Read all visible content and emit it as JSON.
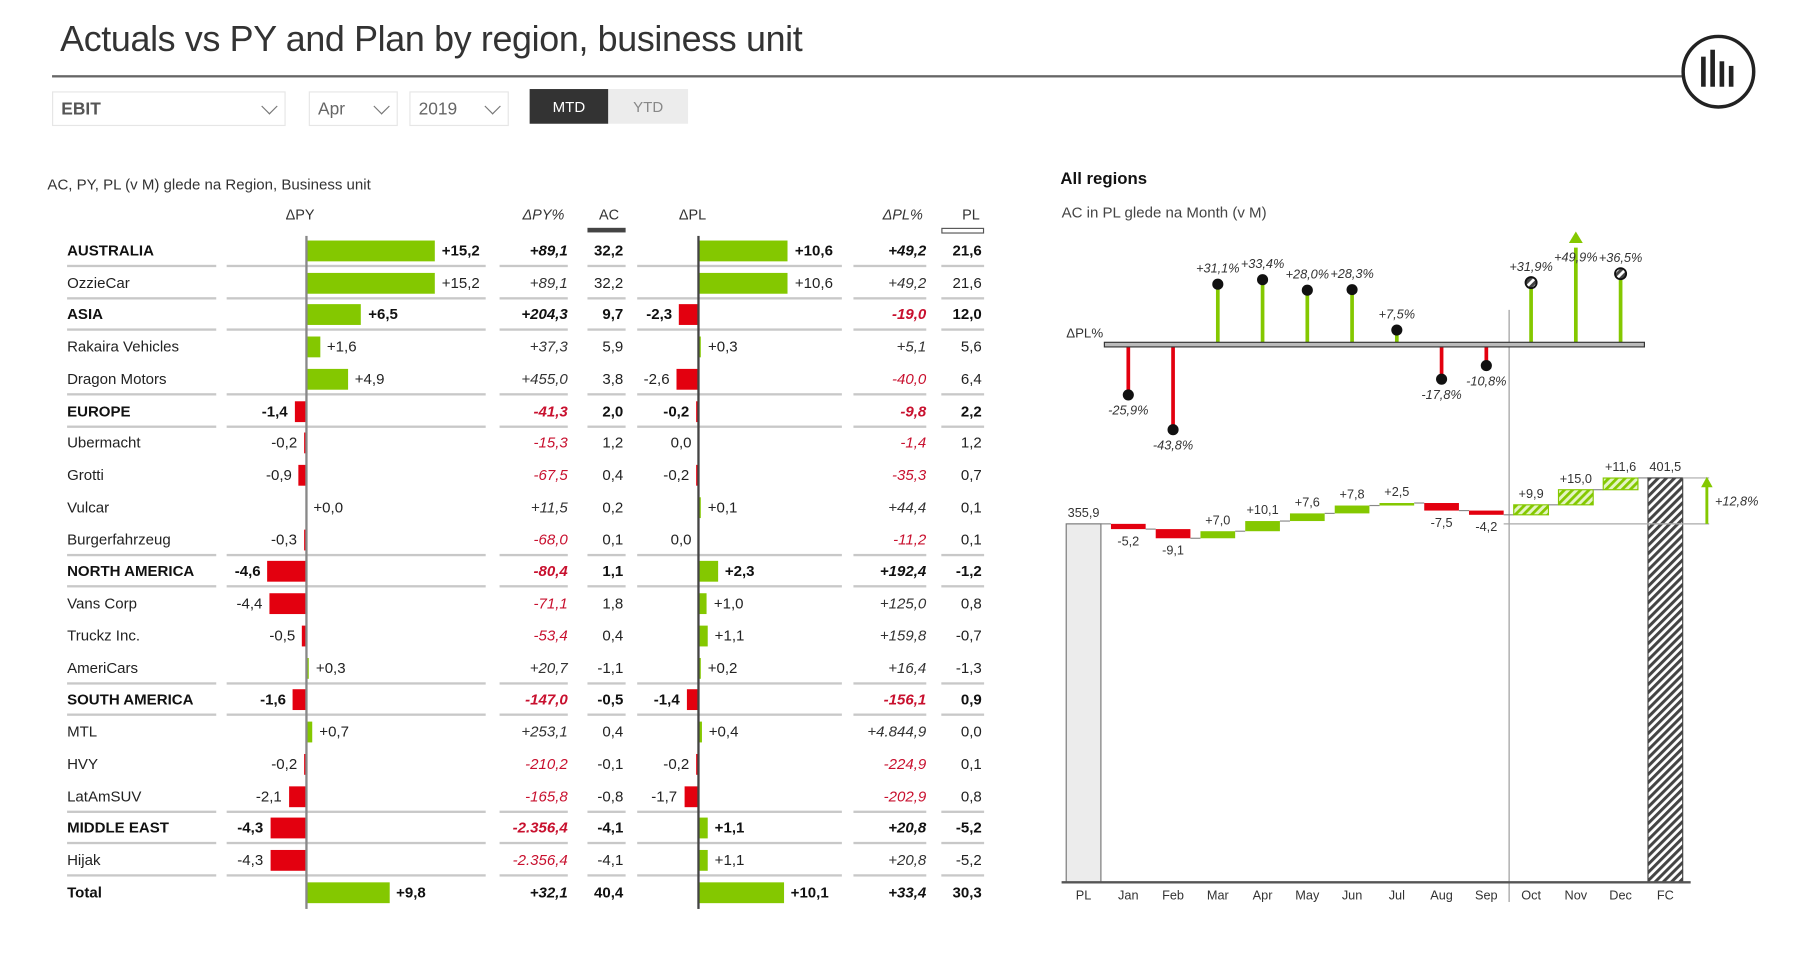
{
  "title": "Actuals vs PY and Plan by region, business unit",
  "filters": {
    "measure": "EBIT",
    "month": "Apr",
    "year": "2019",
    "toggle": [
      {
        "label": "MTD",
        "active": true
      },
      {
        "label": "YTD",
        "active": false
      }
    ]
  },
  "colors": {
    "positive": "#84c800",
    "negative": "#e3000f",
    "negative_text": "#c8102e",
    "active_toggle": "#333333",
    "inactive_toggle": "#ececec"
  },
  "logo": "zebra-bi-logo",
  "table": {
    "subtitle": "AC, PY, PL (v M) glede na Region, Business unit",
    "headers": {
      "dpy": "ΔPY",
      "dpy_pct": "ΔPY%",
      "ac": "AC",
      "dpl": "ΔPL",
      "dpl_pct": "ΔPL%",
      "pl": "PL"
    },
    "rows": [
      {
        "name": "AUSTRALIA",
        "level": "region",
        "dpy": "+15,2",
        "dpy_pct": "+89,1",
        "ac": "32,2",
        "dpl": "+10,6",
        "dpl_pct": "+49,2",
        "pl": "21,6"
      },
      {
        "name": "OzzieCar",
        "level": "unit",
        "sep": true,
        "dpy": "+15,2",
        "dpy_pct": "+89,1",
        "ac": "32,2",
        "dpl": "+10,6",
        "dpl_pct": "+49,2",
        "pl": "21,6"
      },
      {
        "name": "ASIA",
        "level": "region",
        "dpy": "+6,5",
        "dpy_pct": "+204,3",
        "ac": "9,7",
        "dpl": "-2,3",
        "dpl_pct": "-19,0",
        "pl": "12,0"
      },
      {
        "name": "Rakaira Vehicles",
        "level": "unit",
        "dpy": "+1,6",
        "dpy_pct": "+37,3",
        "ac": "5,9",
        "dpl": "+0,3",
        "dpl_pct": "+5,1",
        "pl": "5,6"
      },
      {
        "name": "Dragon Motors",
        "level": "unit",
        "sep": true,
        "dpy": "+4,9",
        "dpy_pct": "+455,0",
        "ac": "3,8",
        "dpl": "-2,6",
        "dpl_pct": "-40,0",
        "pl": "6,4"
      },
      {
        "name": "EUROPE",
        "level": "region",
        "dpy": "-1,4",
        "dpy_pct": "-41,3",
        "ac": "2,0",
        "dpl": "-0,2",
        "dpl_pct": "-9,8",
        "pl": "2,2"
      },
      {
        "name": "Ubermacht",
        "level": "unit",
        "dpy": "-0,2",
        "dpy_pct": "-15,3",
        "ac": "1,2",
        "dpl": "0,0",
        "dpl_pct": "-1,4",
        "pl": "1,2"
      },
      {
        "name": "Grotti",
        "level": "unit",
        "dpy": "-0,9",
        "dpy_pct": "-67,5",
        "ac": "0,4",
        "dpl": "-0,2",
        "dpl_pct": "-35,3",
        "pl": "0,7"
      },
      {
        "name": "Vulcar",
        "level": "unit",
        "dpy": "+0,0",
        "dpy_pct": "+11,5",
        "ac": "0,2",
        "dpl": "+0,1",
        "dpl_pct": "+44,4",
        "pl": "0,1"
      },
      {
        "name": "Burgerfahrzeug",
        "level": "unit",
        "sep": true,
        "dpy": "-0,3",
        "dpy_pct": "-68,0",
        "ac": "0,1",
        "dpl": "0,0",
        "dpl_pct": "-11,2",
        "pl": "0,1"
      },
      {
        "name": "NORTH AMERICA",
        "level": "region",
        "dpy": "-4,6",
        "dpy_pct": "-80,4",
        "ac": "1,1",
        "dpl": "+2,3",
        "dpl_pct": "+192,4",
        "pl": "-1,2"
      },
      {
        "name": "Vans Corp",
        "level": "unit",
        "dpy": "-4,4",
        "dpy_pct": "-71,1",
        "ac": "1,8",
        "dpl": "+1,0",
        "dpl_pct": "+125,0",
        "pl": "0,8"
      },
      {
        "name": "Truckz Inc.",
        "level": "unit",
        "dpy": "-0,5",
        "dpy_pct": "-53,4",
        "ac": "0,4",
        "dpl": "+1,1",
        "dpl_pct": "+159,8",
        "pl": "-0,7"
      },
      {
        "name": "AmeriCars",
        "level": "unit",
        "sep": true,
        "dpy": "+0,3",
        "dpy_pct": "+20,7",
        "ac": "-1,1",
        "dpl": "+0,2",
        "dpl_pct": "+16,4",
        "pl": "-1,3"
      },
      {
        "name": "SOUTH AMERICA",
        "level": "region",
        "dpy": "-1,6",
        "dpy_pct": "-147,0",
        "ac": "-0,5",
        "dpl": "-1,4",
        "dpl_pct": "-156,1",
        "pl": "0,9"
      },
      {
        "name": "MTL",
        "level": "unit",
        "dpy": "+0,7",
        "dpy_pct": "+253,1",
        "ac": "0,4",
        "dpl": "+0,4",
        "dpl_pct": "+4.844,9",
        "pl": "0,0"
      },
      {
        "name": "HVY",
        "level": "unit",
        "dpy": "-0,2",
        "dpy_pct": "-210,2",
        "ac": "-0,1",
        "dpl": "-0,2",
        "dpl_pct": "-224,9",
        "pl": "0,1"
      },
      {
        "name": "LatAmSUV",
        "level": "unit",
        "sep": true,
        "dpy": "-2,1",
        "dpy_pct": "-165,8",
        "ac": "-0,8",
        "dpl": "-1,7",
        "dpl_pct": "-202,9",
        "pl": "0,8"
      },
      {
        "name": "MIDDLE EAST",
        "level": "region",
        "dpy": "-4,3",
        "dpy_pct": "-2.356,4",
        "ac": "-4,1",
        "dpl": "+1,1",
        "dpl_pct": "+20,8",
        "pl": "-5,2"
      },
      {
        "name": "Hijak",
        "level": "unit",
        "sep": true,
        "dpy": "-4,3",
        "dpy_pct": "-2.356,4",
        "ac": "-4,1",
        "dpl": "+1,1",
        "dpl_pct": "+20,8",
        "pl": "-5,2"
      },
      {
        "name": "Total",
        "level": "total",
        "dpy": "+9,8",
        "dpy_pct": "+32,1",
        "ac": "40,4",
        "dpl": "+10,1",
        "dpl_pct": "+33,4",
        "pl": "30,3"
      }
    ]
  },
  "right_panel": {
    "title": "All regions",
    "subtitle": "AC in PL glede na Month (v M)"
  },
  "chart_data": [
    {
      "type": "lollipop",
      "ylabel": "ΔPL%",
      "categories": [
        "Jan",
        "Feb",
        "Mar",
        "Apr",
        "May",
        "Jun",
        "Jul",
        "Aug",
        "Sep",
        "Oct",
        "Nov",
        "Dec"
      ],
      "values": [
        -25.9,
        -43.8,
        31.1,
        33.4,
        28.0,
        28.3,
        7.5,
        -17.8,
        -10.8,
        31.9,
        49.9,
        36.5
      ],
      "labels": [
        "-25,9%",
        "-43,8%",
        "+31,1%",
        "+33,4%",
        "+28,0%",
        "+28,3%",
        "+7,5%",
        "-17,8%",
        "-10,8%",
        "+31,9%",
        "+49,9%",
        "+36,5%"
      ],
      "scenario": [
        "AC",
        "AC",
        "AC",
        "AC",
        "AC",
        "AC",
        "AC",
        "AC",
        "AC",
        "FC",
        "FC",
        "FC"
      ],
      "outlier_marker": "Nov"
    },
    {
      "type": "waterfall",
      "categories": [
        "PL",
        "Jan",
        "Feb",
        "Mar",
        "Apr",
        "May",
        "Jun",
        "Jul",
        "Aug",
        "Sep",
        "Oct",
        "Nov",
        "Dec",
        "FC"
      ],
      "start": {
        "label": "355,9",
        "value": 355.9
      },
      "deltas": [
        -5.2,
        -9.1,
        7.0,
        10.1,
        7.6,
        7.8,
        2.5,
        -7.5,
        -4.2,
        9.9,
        15.0,
        11.6
      ],
      "delta_labels": [
        "-5,2",
        "-9,1",
        "+7,0",
        "+10,1",
        "+7,6",
        "+7,8",
        "+2,5",
        "-7,5",
        "-4,2",
        "+9,9",
        "+15,0",
        "+11,6"
      ],
      "scenario": [
        "AC",
        "AC",
        "AC",
        "AC",
        "AC",
        "AC",
        "AC",
        "AC",
        "AC",
        "FC",
        "FC",
        "FC"
      ],
      "end": {
        "label": "401,5",
        "value": 401.5
      },
      "variance_label": "+12,8%",
      "ylim": [
        0,
        401.5
      ]
    }
  ]
}
